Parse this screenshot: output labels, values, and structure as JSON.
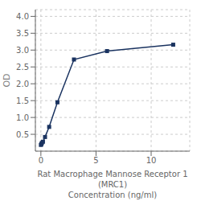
{
  "chart_data": {
    "type": "line",
    "xlabel": "Rat Macrophage Mannose Receptor 1 (MRC1)\nConcentration (ng/ml)",
    "ylabel": "OD",
    "x": [
      0,
      0.0469,
      0.0938,
      0.1875,
      0.375,
      0.75,
      1.5,
      3,
      6,
      12
    ],
    "values": [
      0.185,
      0.21,
      0.245,
      0.28,
      0.42,
      0.72,
      1.45,
      2.72,
      2.97,
      3.16
    ],
    "color": "#1a3360",
    "marker": "square",
    "xlim": [
      -0.5,
      13.5
    ],
    "ylim": [
      0.0,
      4.2
    ],
    "xticks": [
      0,
      5,
      10
    ],
    "yticks": [
      0.5,
      {
        "value": 1.0,
        "label": "1.0"
      },
      1.5,
      {
        "value": 2.0,
        "label": "2.0"
      },
      2.5,
      {
        "value": 3.0,
        "label": "3.0"
      },
      3.5,
      {
        "value": 4.0,
        "label": "4.0"
      }
    ],
    "grid": true
  }
}
